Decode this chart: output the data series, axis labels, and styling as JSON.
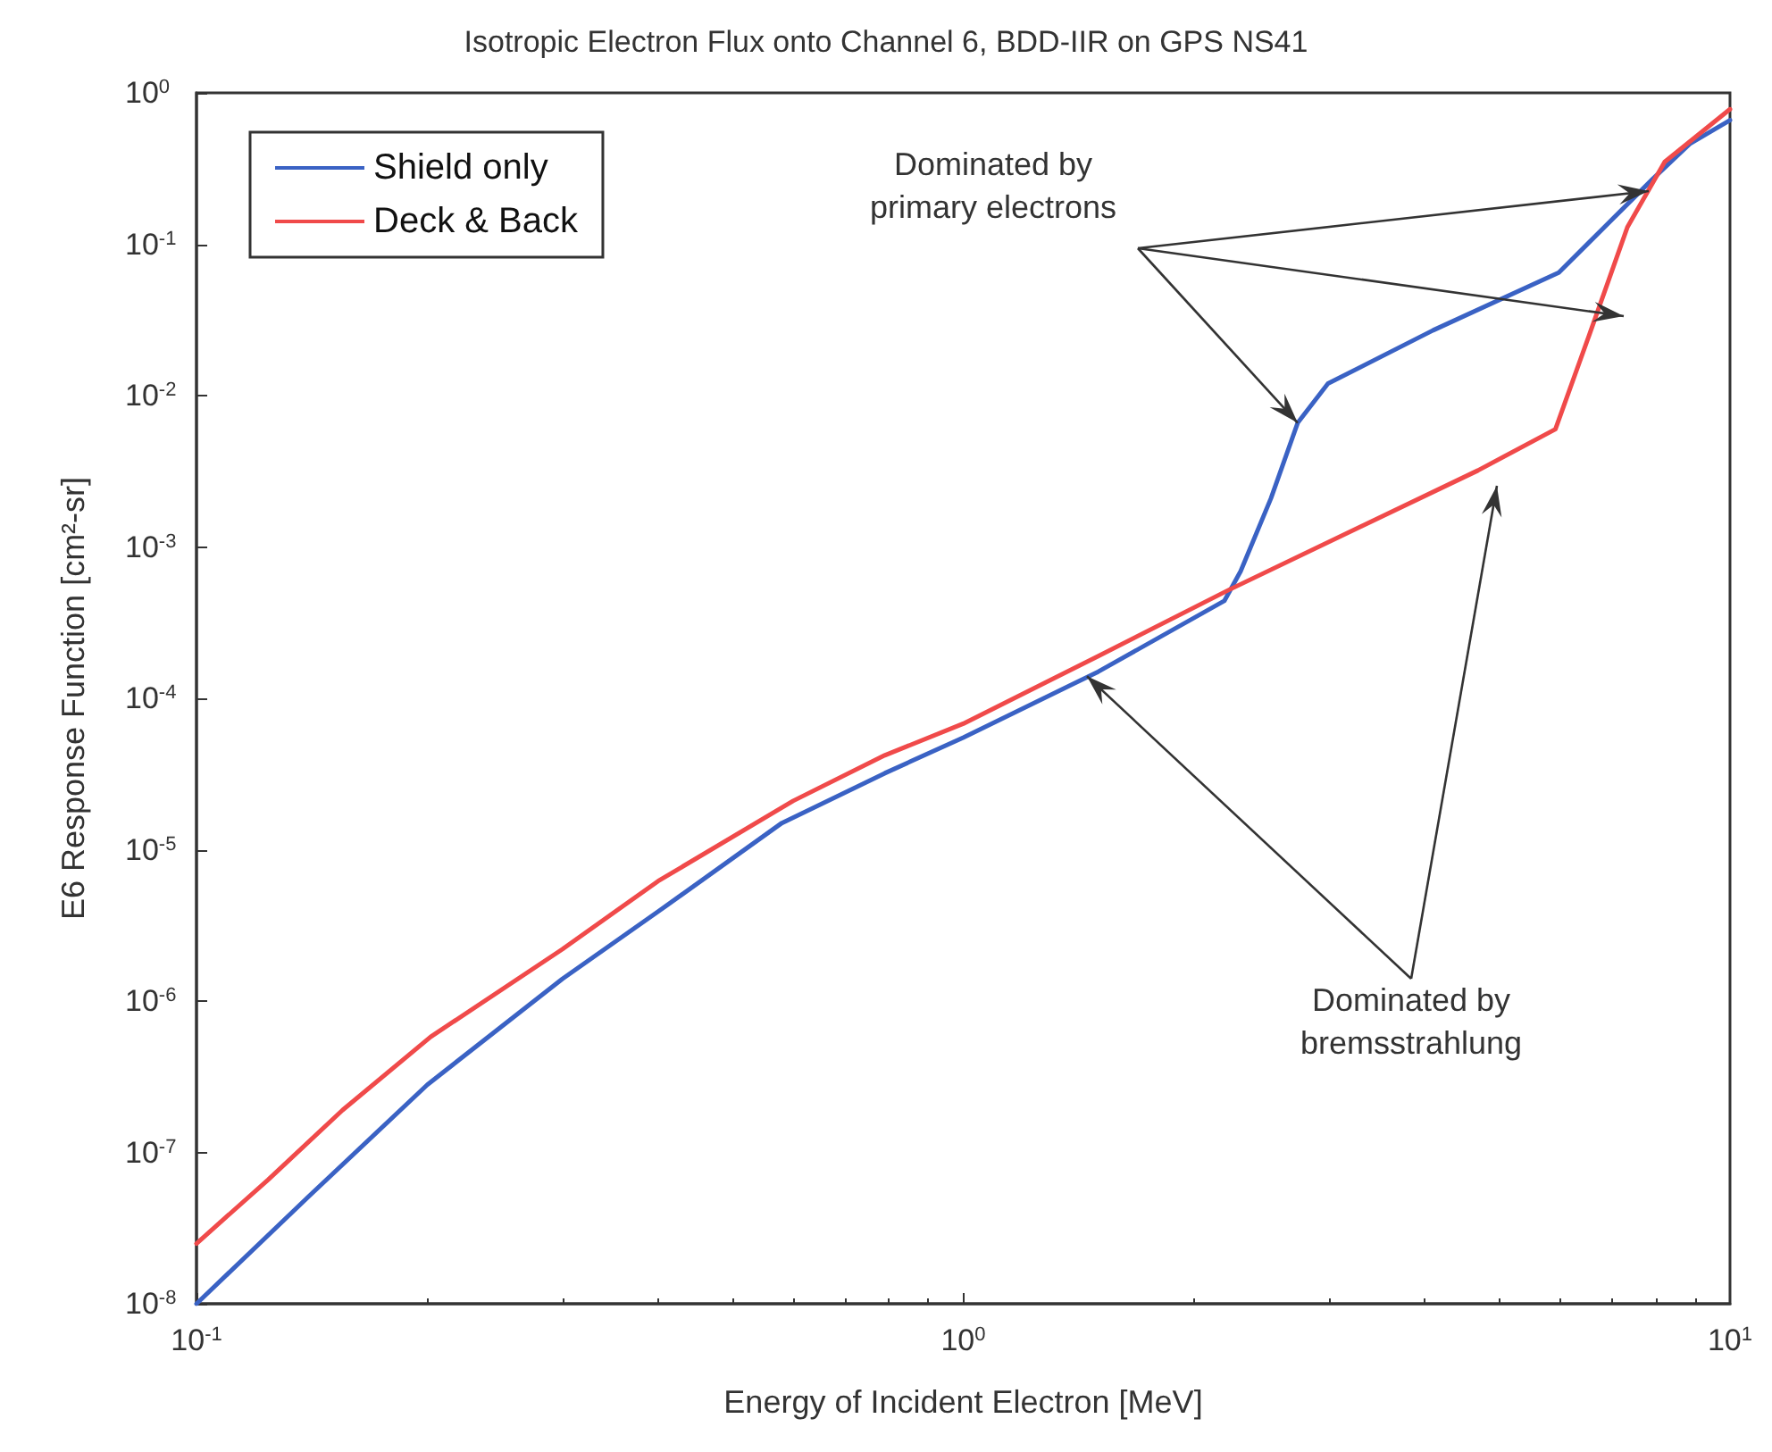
{
  "chart_data": {
    "type": "line",
    "title": "Isotropic Electron Flux onto Channel 6, BDD-IIR on GPS NS41",
    "xlabel": "Energy of Incident Electron [MeV]",
    "ylabel": "E6 Response Function [cm²-sr]",
    "log": "xy",
    "xlim": [
      0.1,
      10
    ],
    "ylim": [
      1e-08,
      1
    ],
    "xticks": [
      {
        "value": 0.1,
        "label": "10$^{-1}$"
      },
      {
        "value": 1,
        "label": "10$^{0}$"
      },
      {
        "value": 10,
        "label": "10$^{1}$"
      }
    ],
    "yticks": [
      {
        "value": 1e-08,
        "label": "10$^{-8}$"
      },
      {
        "value": 1e-07,
        "label": "10$^{-7}$"
      },
      {
        "value": 1e-06,
        "label": "10$^{-6}$"
      },
      {
        "value": 1e-05,
        "label": "10$^{-5}$"
      },
      {
        "value": 0.0001,
        "label": "10$^{-4}$"
      },
      {
        "value": 0.001,
        "label": "10$^{-3}$"
      },
      {
        "value": 0.01,
        "label": "10$^{-2}$"
      },
      {
        "value": 0.1,
        "label": "10$^{-1}$"
      },
      {
        "value": 1,
        "label": "10$^{0}$"
      }
    ],
    "grid": false,
    "legend": "top left",
    "marker": "none",
    "line_style": "solid",
    "annotations": [
      {
        "text": "Dominated by\nprimary electrons",
        "x": 2.73,
        "y": 0.0066
      },
      {
        "text": "Dominated by\nbremsstrahlung",
        "x": 1.45,
        "y": 0.00014
      }
    ],
    "series": [
      {
        "name": "Shield only",
        "color": "#3a62c4",
        "x": [
          0.1,
          0.14,
          0.2,
          0.3,
          0.4,
          0.58,
          0.79,
          1.0,
          1.5,
          2.19,
          2.3,
          2.52,
          2.73,
          2.99,
          4.1,
          5.98,
          7.93,
          8.86,
          10
        ],
        "values": [
          1e-08,
          5.1e-08,
          2.8e-07,
          1.4e-06,
          3.9e-06,
          1.5e-05,
          3.2e-05,
          5.5e-05,
          0.00015,
          0.00044,
          0.00069,
          0.0021,
          0.0066,
          0.012,
          0.027,
          0.065,
          0.27,
          0.46,
          0.66
        ]
      },
      {
        "name": "Deck & Back",
        "color": "#f04a4a",
        "x": [
          0.1,
          0.124,
          0.155,
          0.202,
          0.3,
          0.4,
          0.6,
          0.79,
          1.0,
          1.5,
          2.22,
          4.69,
          5.92,
          6.55,
          7.35,
          8.22,
          10
        ],
        "values": [
          2.5e-08,
          6.6e-08,
          1.9e-07,
          5.8e-07,
          2.2e-06,
          6.2e-06,
          2.1e-05,
          4.2e-05,
          6.8e-05,
          0.00019,
          0.00052,
          0.0032,
          0.006,
          0.025,
          0.13,
          0.35,
          0.78
        ]
      }
    ]
  }
}
